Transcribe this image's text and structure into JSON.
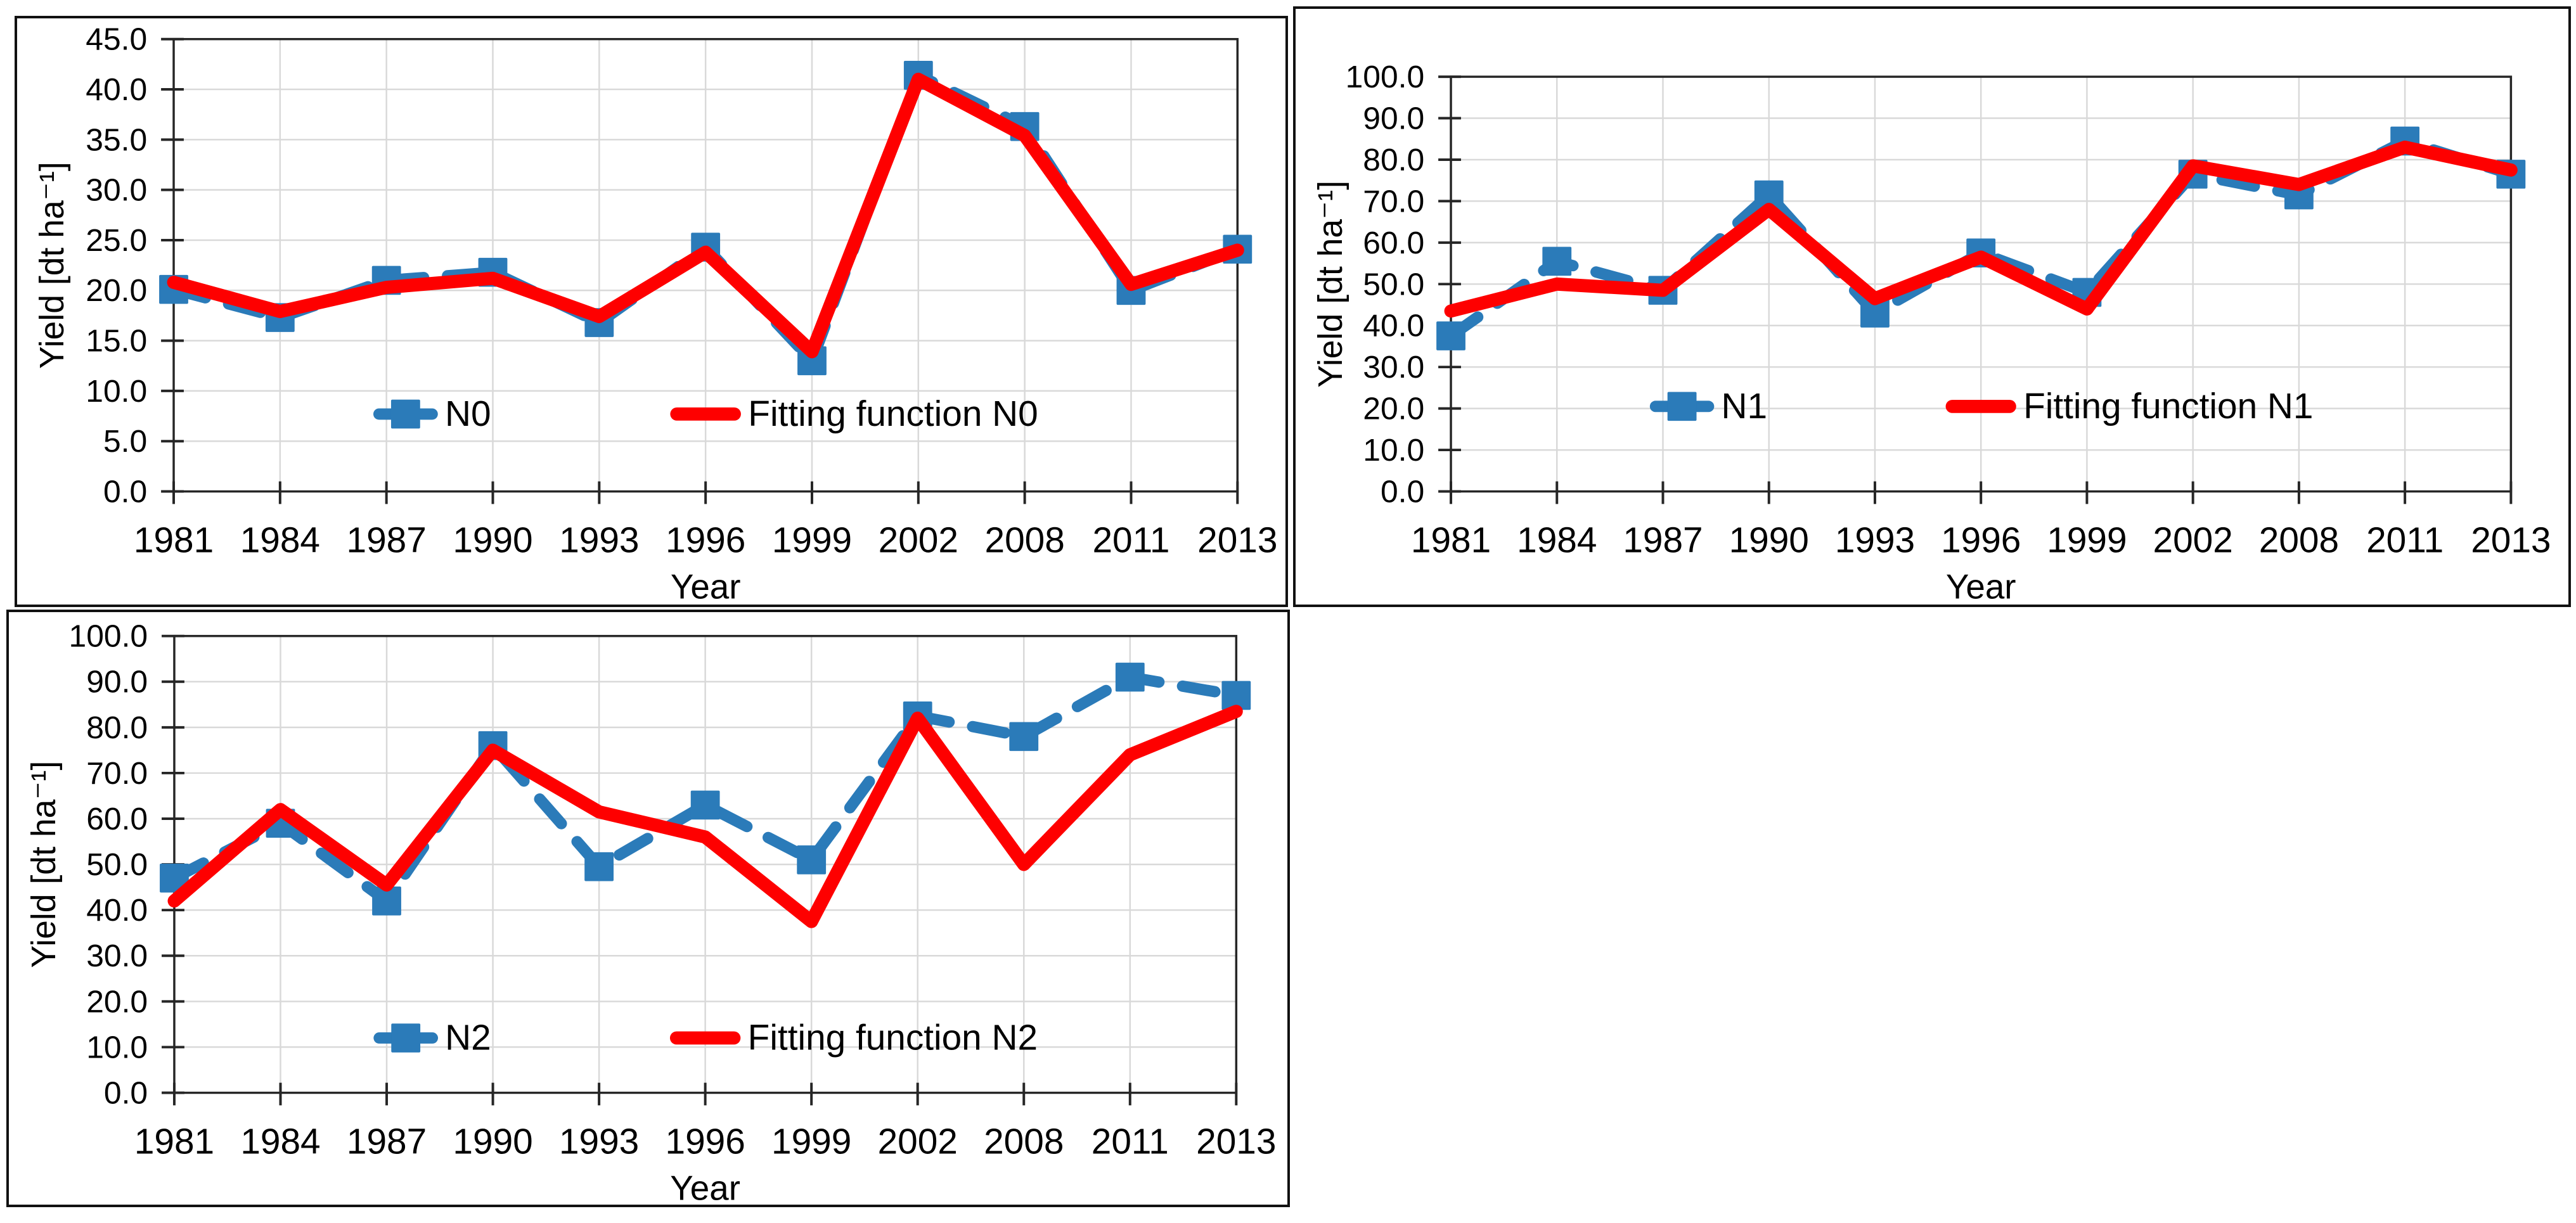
{
  "page": {
    "background": "#ffffff"
  },
  "colors": {
    "series_blue": "#2B7BB9",
    "fit_red": "#FE0000",
    "gridline": "#D9D9D9",
    "axis_frame": "#262626",
    "text": "#000000",
    "panel_border": "#111111"
  },
  "chart_data": [
    {
      "type": "line",
      "title": "",
      "xlabel": "Year",
      "ylabel": "Yield [dt ha⁻¹]",
      "categories": [
        "1981",
        "1984",
        "1987",
        "1990",
        "1993",
        "1996",
        "1999",
        "2002",
        "2008",
        "2011",
        "2013"
      ],
      "series": [
        {
          "name": "N0",
          "style": "dashed",
          "marker": "square",
          "color_key": "series_blue",
          "values": [
            20.1,
            17.3,
            21.0,
            21.8,
            16.8,
            24.3,
            13.0,
            41.4,
            36.3,
            20.0,
            24.1
          ]
        },
        {
          "name": "Fitting function N0",
          "style": "solid",
          "marker": "none",
          "color_key": "fit_red",
          "values": [
            20.8,
            17.9,
            20.3,
            21.2,
            17.4,
            23.8,
            13.9,
            41.0,
            35.4,
            20.6,
            24.0
          ]
        }
      ],
      "ylim": [
        0,
        45
      ],
      "ystep": 5,
      "y_tick_decimals": 1,
      "grid": true,
      "legend_position": "inside-bottom",
      "legend_y_value": 7.7
    },
    {
      "type": "line",
      "title": "",
      "xlabel": "Year",
      "ylabel": "Yield [dt ha⁻¹]",
      "categories": [
        "1981",
        "1984",
        "1987",
        "1990",
        "1993",
        "1996",
        "1999",
        "2002",
        "2008",
        "2011",
        "2013"
      ],
      "series": [
        {
          "name": "N1",
          "style": "dashed",
          "marker": "square",
          "color_key": "series_blue",
          "values": [
            37.5,
            55.5,
            48.5,
            71.5,
            43.0,
            57.5,
            48.0,
            76.5,
            71.5,
            84.5,
            76.5
          ]
        },
        {
          "name": "Fitting function N1",
          "style": "solid",
          "marker": "none",
          "color_key": "fit_red",
          "values": [
            43.5,
            50.0,
            48.5,
            68.0,
            46.5,
            56.5,
            44.0,
            78.5,
            74.0,
            83.0,
            77.5
          ]
        }
      ],
      "ylim": [
        0,
        100
      ],
      "ystep": 10,
      "y_tick_decimals": 1,
      "grid": true,
      "legend_position": "inside-bottom",
      "legend_y_value": 20.5
    },
    {
      "type": "line",
      "title": "",
      "xlabel": "Year",
      "ylabel": "Yield [dt ha⁻¹]",
      "categories": [
        "1981",
        "1984",
        "1987",
        "1990",
        "1993",
        "1996",
        "1999",
        "2002",
        "2008",
        "2011",
        "2013"
      ],
      "series": [
        {
          "name": "N2",
          "style": "dashed",
          "marker": "square",
          "color_key": "series_blue",
          "values": [
            47.0,
            59.0,
            42.0,
            76.0,
            49.5,
            63.0,
            51.0,
            82.5,
            78.0,
            91.0,
            87.0
          ]
        },
        {
          "name": "Fitting function N2",
          "style": "solid",
          "marker": "none",
          "color_key": "fit_red",
          "values": [
            42.0,
            62.0,
            45.5,
            75.0,
            61.5,
            56.0,
            37.5,
            82.0,
            50.0,
            74.0,
            83.5
          ]
        }
      ],
      "ylim": [
        0,
        100
      ],
      "ystep": 10,
      "y_tick_decimals": 1,
      "grid": true,
      "legend_position": "inside-bottom",
      "legend_y_value": 12.0
    }
  ]
}
